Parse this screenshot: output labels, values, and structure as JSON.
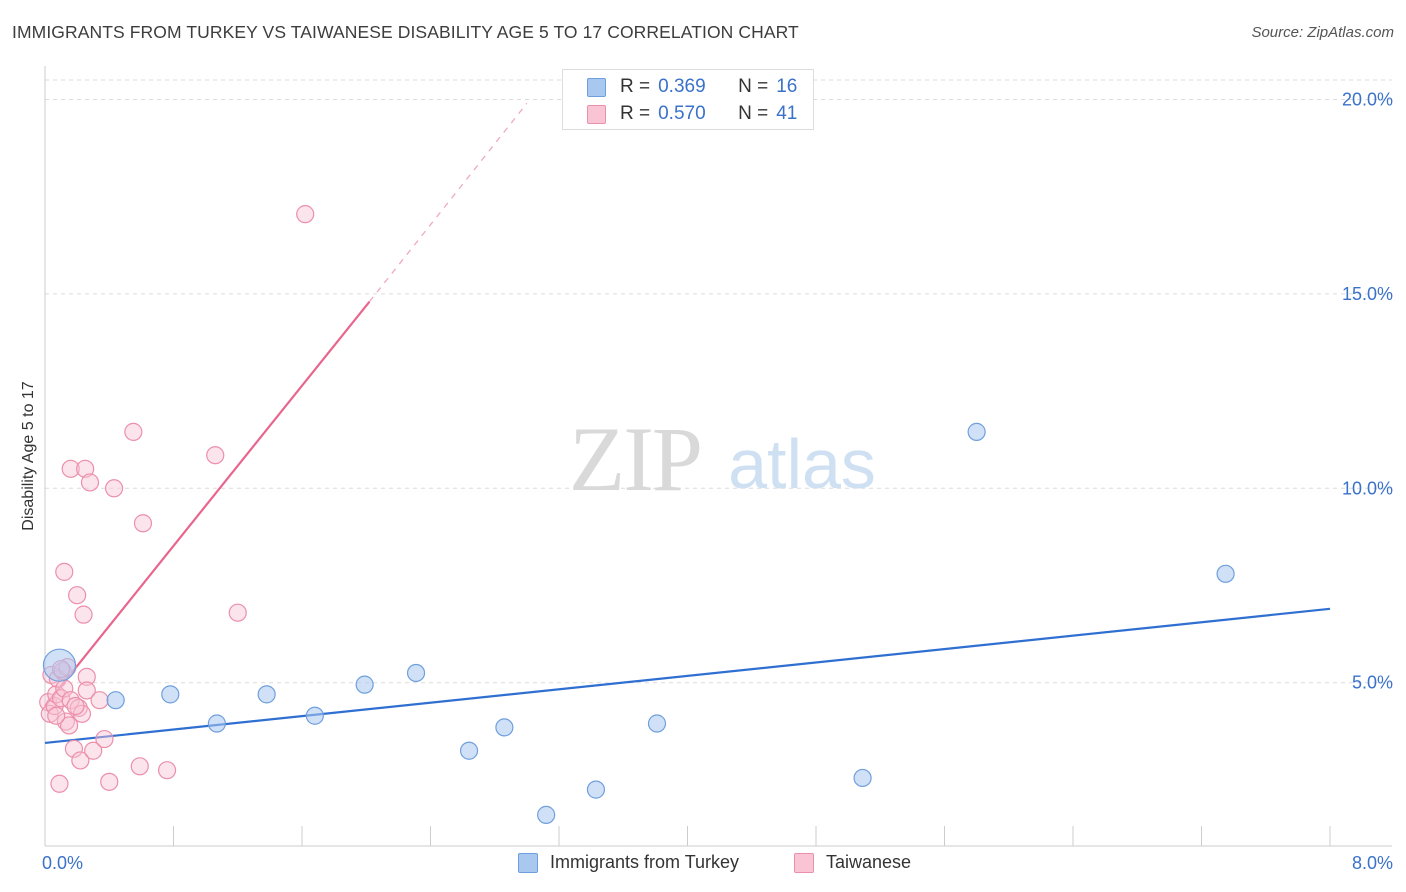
{
  "title": "IMMIGRANTS FROM TURKEY VS TAIWANESE DISABILITY AGE 5 TO 17 CORRELATION CHART",
  "source": "Source: ZipAtlas.com",
  "watermark": {
    "zip": "ZIP",
    "atlas": "atlas"
  },
  "legend_stats": [
    {
      "r_label": "R =",
      "r_value": "0.369",
      "n_label": "N =",
      "n_value": "16",
      "color": "#a9c8f0",
      "border": "#6f9fdc"
    },
    {
      "r_label": "R =",
      "r_value": "0.570",
      "n_label": "N =",
      "n_value": "41",
      "color": "#f9c4d4",
      "border": "#ec8fab"
    }
  ],
  "colors": {
    "blue_fill": "rgba(170,200,240,0.55)",
    "blue_stroke": "#6f9fdc",
    "blue_line": "#2f6fd1",
    "pink_fill": "rgba(249,196,212,0.45)",
    "pink_stroke": "#ec8fab",
    "pink_line": "#e8668e",
    "value_text": "#3a72c9",
    "grid": "#dcdcdc"
  },
  "chart_data": {
    "type": "scatter",
    "title": "IMMIGRANTS FROM TURKEY VS TAIWANESE DISABILITY AGE 5 TO 17 CORRELATION CHART",
    "xlabel": "",
    "ylabel": "Disability Age 5 to 17",
    "xlim": [
      0,
      8
    ],
    "ylim": [
      0.8,
      20.5
    ],
    "x_ticks": [
      "0.0%",
      "8.0%"
    ],
    "y_ticks": [
      {
        "value": 5,
        "label": "5.0%"
      },
      {
        "value": 10,
        "label": "10.0%"
      },
      {
        "value": 15,
        "label": "15.0%"
      },
      {
        "value": 20,
        "label": "20.0%"
      }
    ],
    "grid": true,
    "legend_position": "bottom",
    "series": [
      {
        "name": "Immigrants from Turkey",
        "color": "#6f9fdc",
        "points": [
          {
            "x": 0.09,
            "y": 5.45,
            "large": true
          },
          {
            "x": 0.44,
            "y": 4.55
          },
          {
            "x": 0.78,
            "y": 4.7
          },
          {
            "x": 1.07,
            "y": 3.95
          },
          {
            "x": 1.38,
            "y": 4.7
          },
          {
            "x": 1.68,
            "y": 4.15
          },
          {
            "x": 1.99,
            "y": 4.95
          },
          {
            "x": 2.31,
            "y": 5.25
          },
          {
            "x": 2.64,
            "y": 3.25
          },
          {
            "x": 2.86,
            "y": 3.85
          },
          {
            "x": 3.12,
            "y": 1.6
          },
          {
            "x": 3.43,
            "y": 2.25
          },
          {
            "x": 3.81,
            "y": 3.95
          },
          {
            "x": 5.09,
            "y": 2.55
          },
          {
            "x": 5.8,
            "y": 11.45
          },
          {
            "x": 7.35,
            "y": 7.8
          }
        ],
        "trend": {
          "x0": 0.0,
          "y0": 3.45,
          "x1": 8.0,
          "y1": 6.9
        }
      },
      {
        "name": "Taiwanese",
        "color": "#ec8fab",
        "points": [
          {
            "x": 0.02,
            "y": 4.5
          },
          {
            "x": 0.03,
            "y": 4.2
          },
          {
            "x": 0.04,
            "y": 5.2
          },
          {
            "x": 0.06,
            "y": 4.4
          },
          {
            "x": 0.07,
            "y": 4.7
          },
          {
            "x": 0.08,
            "y": 5.1
          },
          {
            "x": 0.09,
            "y": 2.4
          },
          {
            "x": 0.1,
            "y": 4.6
          },
          {
            "x": 0.11,
            "y": 5.3
          },
          {
            "x": 0.12,
            "y": 4.85
          },
          {
            "x": 0.13,
            "y": 4.0
          },
          {
            "x": 0.14,
            "y": 5.4
          },
          {
            "x": 0.12,
            "y": 7.85
          },
          {
            "x": 0.15,
            "y": 3.9
          },
          {
            "x": 0.16,
            "y": 4.55
          },
          {
            "x": 0.16,
            "y": 10.5
          },
          {
            "x": 0.18,
            "y": 3.3
          },
          {
            "x": 0.2,
            "y": 7.25
          },
          {
            "x": 0.21,
            "y": 4.35
          },
          {
            "x": 0.22,
            "y": 3.0
          },
          {
            "x": 0.23,
            "y": 4.2
          },
          {
            "x": 0.24,
            "y": 6.75
          },
          {
            "x": 0.25,
            "y": 10.5
          },
          {
            "x": 0.26,
            "y": 5.15
          },
          {
            "x": 0.26,
            "y": 4.8
          },
          {
            "x": 0.28,
            "y": 10.15
          },
          {
            "x": 0.3,
            "y": 3.25
          },
          {
            "x": 0.34,
            "y": 4.55
          },
          {
            "x": 0.37,
            "y": 3.55
          },
          {
            "x": 0.4,
            "y": 2.45
          },
          {
            "x": 0.43,
            "y": 10.0
          },
          {
            "x": 0.55,
            "y": 11.45
          },
          {
            "x": 0.59,
            "y": 2.85
          },
          {
            "x": 0.61,
            "y": 9.1
          },
          {
            "x": 0.76,
            "y": 2.75
          },
          {
            "x": 1.06,
            "y": 10.85
          },
          {
            "x": 1.2,
            "y": 6.8
          },
          {
            "x": 1.62,
            "y": 17.05
          },
          {
            "x": 0.19,
            "y": 4.4
          },
          {
            "x": 0.07,
            "y": 4.15
          },
          {
            "x": 0.1,
            "y": 5.35
          }
        ],
        "trend": {
          "x0": 0.0,
          "y0": 4.4,
          "x1": 2.02,
          "y1": 14.8
        },
        "trend_extension": {
          "x0": 2.02,
          "y0": 14.8,
          "x1": 3.0,
          "y1": 19.9
        }
      }
    ]
  }
}
